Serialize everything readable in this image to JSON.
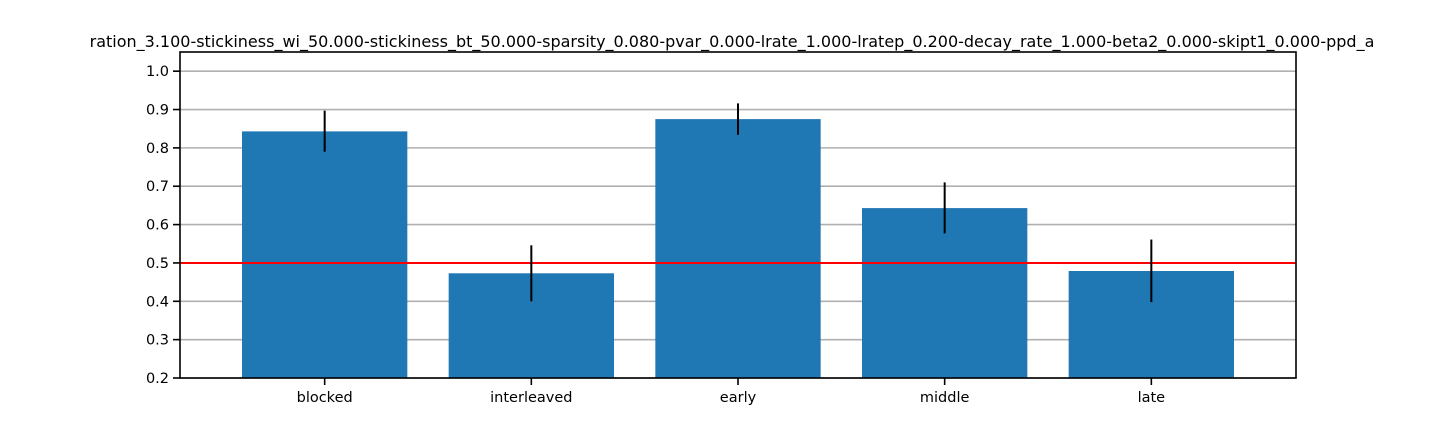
{
  "chart_data": {
    "type": "bar",
    "title": "ration_3.100-stickiness_wi_50.000-stickiness_bt_50.000-sparsity_0.080-pvar_0.000-lrate_1.000-lratep_0.200-decay_rate_1.000-beta2_0.000-skipt1_0.000-ppd_a",
    "xlabel": "",
    "ylabel": "",
    "categories": [
      "blocked",
      "interleaved",
      "early",
      "middle",
      "late"
    ],
    "values": [
      0.843,
      0.473,
      0.875,
      0.643,
      0.479
    ],
    "errors": [
      [
        0.79,
        0.897
      ],
      [
        0.4,
        0.546
      ],
      [
        0.834,
        0.916
      ],
      [
        0.577,
        0.71
      ],
      [
        0.398,
        0.561
      ]
    ],
    "ylim": [
      0.2,
      1.05
    ],
    "yticks": [
      "0.2",
      "0.3",
      "0.4",
      "0.5",
      "0.6",
      "0.7",
      "0.8",
      "0.9",
      "1.0"
    ],
    "reference_line": 0.5,
    "grid": "horizontal",
    "colors": {
      "bar": "#1f77b4",
      "reference_line": "#ff0000",
      "error_bar": "#000000",
      "grid": "#b0b0b0"
    }
  }
}
